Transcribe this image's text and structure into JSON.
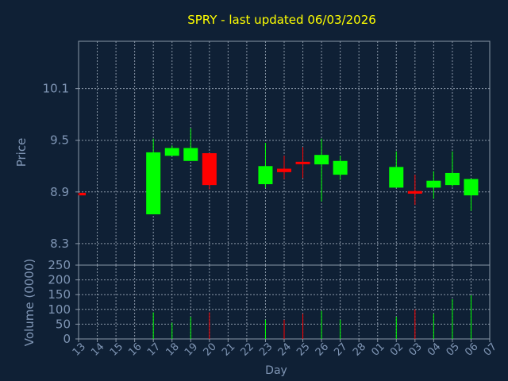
{
  "chart_data": {
    "type": "candlestick",
    "title": "SPRY - last updated 06/03/2026",
    "xlabel": "Day",
    "ylabel": "Price",
    "volume_label": "Volume (0000)",
    "grid": true,
    "colors": {
      "background": "#0f2035",
      "plot_border": "#8a97a8",
      "grid": "#8a97a8",
      "axis_text": "#7f95b4",
      "title": "#ffff00",
      "up": "#00ff00",
      "down": "#ff0000"
    },
    "x_ticks": [
      "13",
      "14",
      "15",
      "16",
      "17",
      "18",
      "19",
      "20",
      "21",
      "22",
      "23",
      "24",
      "25",
      "26",
      "27",
      "28",
      "01",
      "02",
      "03",
      "04",
      "05",
      "06",
      "07"
    ],
    "price_axis": {
      "range": [
        8.05,
        10.65
      ],
      "ticks": [
        8.3,
        8.9,
        9.5,
        10.1
      ],
      "tick_labels": [
        "8.3",
        "8.9",
        "9.5",
        "10.1"
      ]
    },
    "volume_axis": {
      "range": [
        0,
        250
      ],
      "ticks": [
        0,
        50,
        100,
        150,
        200,
        250
      ],
      "tick_labels": [
        "0",
        "50",
        "100",
        "150",
        "200",
        "250"
      ]
    },
    "candles": [
      {
        "day": "13",
        "open": 8.89,
        "high": 8.89,
        "low": 8.86,
        "close": 8.86,
        "volume": 0
      },
      {
        "day": "17",
        "open": 8.64,
        "high": 9.52,
        "low": 8.64,
        "close": 9.36,
        "volume": 90
      },
      {
        "day": "18",
        "open": 9.32,
        "high": 9.44,
        "low": 9.32,
        "close": 9.41,
        "volume": 55
      },
      {
        "day": "19",
        "open": 9.26,
        "high": 9.64,
        "low": 9.26,
        "close": 9.41,
        "volume": 75
      },
      {
        "day": "20",
        "open": 9.35,
        "high": 9.35,
        "low": 8.93,
        "close": 8.98,
        "volume": 90
      },
      {
        "day": "23",
        "open": 8.99,
        "high": 9.47,
        "low": 8.95,
        "close": 9.2,
        "volume": 65
      },
      {
        "day": "24",
        "open": 9.17,
        "high": 9.32,
        "low": 9.05,
        "close": 9.13,
        "volume": 65
      },
      {
        "day": "25",
        "open": 9.25,
        "high": 9.42,
        "low": 9.06,
        "close": 9.23,
        "volume": 85
      },
      {
        "day": "26",
        "open": 9.22,
        "high": 9.52,
        "low": 8.79,
        "close": 9.33,
        "volume": 95
      },
      {
        "day": "27",
        "open": 9.1,
        "high": 9.32,
        "low": 9.04,
        "close": 9.26,
        "volume": 65
      },
      {
        "day": "02",
        "open": 8.95,
        "high": 9.37,
        "low": 8.95,
        "close": 9.19,
        "volume": 75
      },
      {
        "day": "03",
        "open": 8.91,
        "high": 9.1,
        "low": 8.75,
        "close": 8.88,
        "volume": 100
      },
      {
        "day": "04",
        "open": 8.95,
        "high": 9.14,
        "low": 8.82,
        "close": 9.03,
        "volume": 85
      },
      {
        "day": "05",
        "open": 8.98,
        "high": 9.37,
        "low": 8.96,
        "close": 9.12,
        "volume": 135
      },
      {
        "day": "06",
        "open": 8.86,
        "high": 9.05,
        "low": 8.68,
        "close": 9.05,
        "volume": 148
      }
    ]
  }
}
